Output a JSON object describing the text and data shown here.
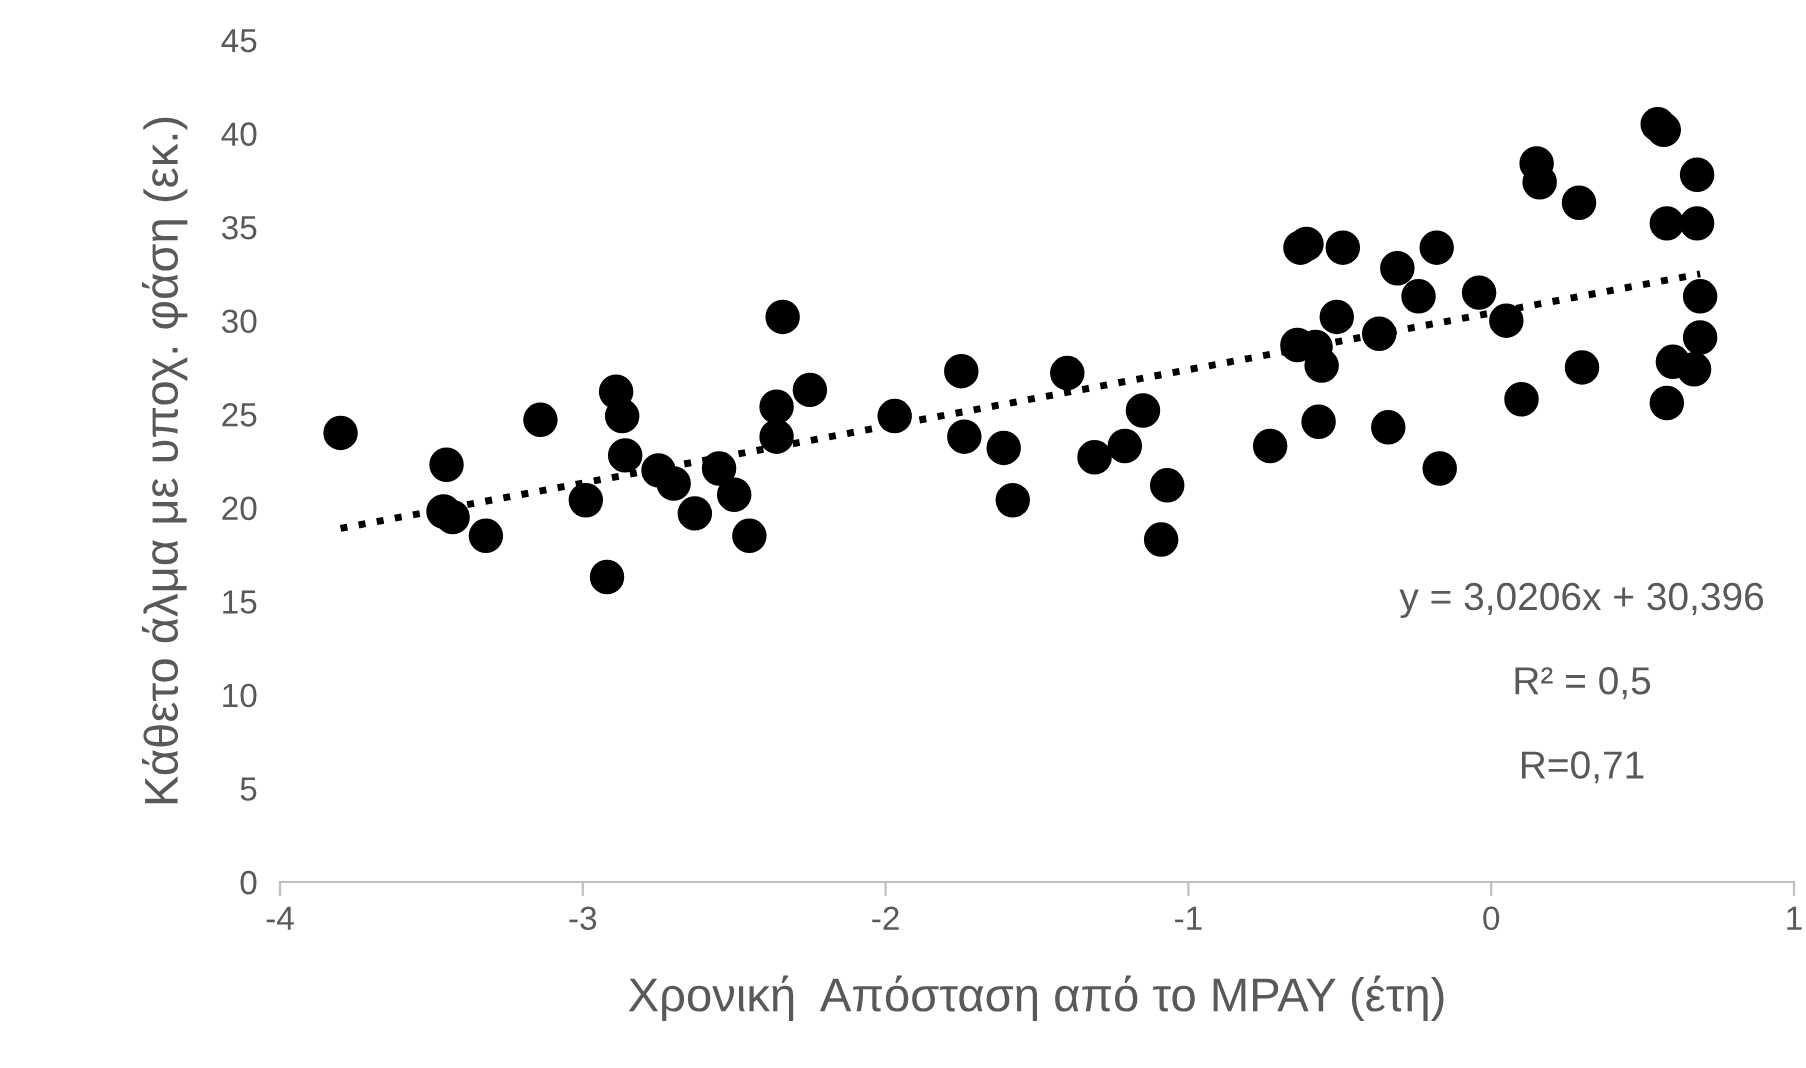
{
  "chart_data": {
    "type": "scatter",
    "xlabel": "Χρονική  Απόσταση από το MPAY (έτη)",
    "ylabel": "Κάθετο άλμα με υποχ. φάση (εκ.)",
    "xlim": [
      -4,
      1
    ],
    "xticks": [
      -4,
      -3,
      -2,
      -1,
      0,
      1
    ],
    "ylim": [
      0,
      45
    ],
    "yticks": [
      0,
      5,
      10,
      15,
      20,
      25,
      30,
      35,
      40,
      45
    ],
    "grid": false,
    "marker": "circle",
    "series": [
      {
        "color": "#000000",
        "x": [
          -3.8,
          -3.45,
          -3.46,
          -3.43,
          -3.32,
          -3.14,
          -2.99,
          -2.92,
          -2.89,
          -2.87,
          -2.86,
          -2.75,
          -2.7,
          -2.63,
          -2.55,
          -2.5,
          -2.45,
          -2.36,
          -2.36,
          -2.34,
          -2.25,
          -1.97,
          -1.75,
          -1.74,
          -1.61,
          -1.58,
          -1.4,
          -1.31,
          -1.21,
          -1.15,
          -1.09,
          -1.07,
          -0.73,
          -0.64,
          -0.63,
          -0.61,
          -0.58,
          -0.57,
          -0.56,
          -0.51,
          -0.49,
          -0.37,
          -0.34,
          -0.31,
          -0.24,
          -0.18,
          -0.17,
          -0.04,
          0.05,
          0.1,
          0.15,
          0.16,
          0.29,
          0.3,
          0.55,
          0.57,
          0.58,
          0.58,
          0.6,
          0.68,
          0.68,
          0.69,
          0.69,
          0.67
        ],
        "values": [
          24.0,
          22.3,
          19.8,
          19.5,
          18.5,
          24.7,
          20.4,
          16.3,
          26.2,
          24.9,
          22.8,
          22.0,
          21.3,
          19.7,
          22.1,
          20.7,
          18.5,
          23.8,
          25.4,
          30.2,
          26.3,
          24.9,
          27.3,
          23.8,
          23.2,
          20.4,
          27.2,
          22.7,
          23.3,
          25.2,
          18.3,
          21.2,
          23.3,
          28.7,
          33.9,
          34.1,
          28.6,
          24.6,
          27.6,
          30.2,
          33.9,
          29.3,
          24.3,
          32.8,
          31.3,
          33.9,
          22.1,
          31.5,
          30.0,
          25.8,
          38.4,
          37.4,
          36.3,
          27.5,
          40.5,
          40.2,
          35.2,
          25.6,
          27.8,
          37.8,
          35.2,
          31.3,
          29.1,
          27.4
        ]
      },
      {
        "type": "line",
        "color": "#000000",
        "line_style": "dotted",
        "marker": "none",
        "x": [
          -3.8,
          0.69
        ],
        "values": [
          18.9,
          32.5
        ]
      }
    ],
    "annotations": [
      "y = 3,0206x + 30,396",
      "R² = 0,5",
      "R=0,71"
    ]
  }
}
